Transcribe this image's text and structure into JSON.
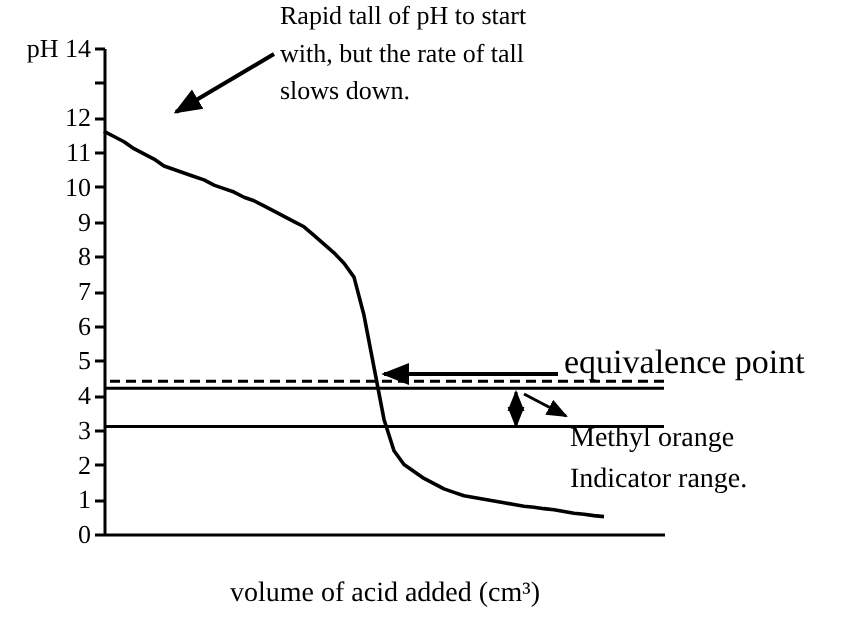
{
  "chart_data": {
    "type": "line",
    "xlabel": "volume of acid added (cm³)",
    "categories": [
      null,
      null,
      null,
      null,
      null,
      null,
      null,
      null,
      null,
      null,
      null,
      null,
      null,
      null,
      null,
      null,
      null,
      null,
      null,
      null,
      null,
      null,
      null,
      null,
      null,
      null,
      null,
      null,
      null,
      null,
      null,
      null,
      null,
      null,
      null,
      null,
      null,
      null,
      null,
      null,
      null,
      null,
      null,
      null,
      null,
      null,
      null,
      null,
      null,
      null,
      null,
      null,
      null,
      null,
      null,
      null,
      null
    ],
    "series": [
      {
        "color": "#000000",
        "values": [
          11.6,
          11.45,
          11.3,
          11.1,
          10.95,
          10.8,
          10.6,
          10.5,
          10.4,
          10.3,
          10.2,
          10.05,
          9.95,
          9.85,
          9.7,
          9.6,
          9.45,
          9.3,
          9.15,
          9.0,
          8.85,
          8.6,
          8.35,
          8.1,
          7.8,
          7.4,
          6.3,
          4.8,
          3.3,
          2.4,
          2.0,
          1.8,
          1.6,
          1.45,
          1.3,
          1.2,
          1.1,
          1.05,
          1.0,
          0.95,
          0.9,
          0.85,
          0.8,
          0.77,
          0.73,
          0.7,
          0.65,
          0.6,
          0.57,
          0.53,
          0.5,
          null,
          null,
          null,
          null,
          null,
          null
        ]
      }
    ],
    "ylim": [
      0,
      14
    ],
    "yticks": [
      0,
      1,
      2,
      3,
      4,
      5,
      6,
      7,
      8,
      9,
      10,
      11,
      12,
      {
        "value": 13,
        "label": null
      },
      {
        "value": 14,
        "label": "pH 14"
      }
    ],
    "tick_labels": "y",
    "grid": false,
    "legend": false,
    "marker": "none",
    "line_style": "solid",
    "ref_lines": [
      {
        "axis": "y",
        "value": 4.4,
        "label": "equivalence point",
        "line_style": "dashed",
        "color": "#000000"
      },
      {
        "axis": "y",
        "value": 4.2,
        "line_style": "solid",
        "color": "#000000"
      },
      {
        "axis": "y",
        "value": 3.1,
        "line_style": "solid",
        "color": "#000000"
      }
    ],
    "annotations": [
      "Rapid tall of pH to start with, but the rate of tall slows down.",
      "Methyl orange Indicator range."
    ]
  }
}
